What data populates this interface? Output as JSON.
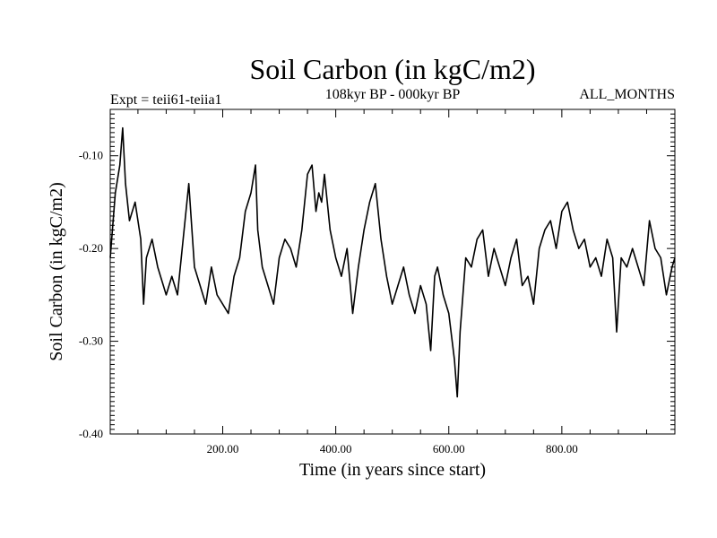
{
  "chart_data": {
    "type": "line",
    "title": "Soil Carbon (in kgC/m2)",
    "subtitle_left": "Expt = teii61-teiia1",
    "subtitle_center": "108kyr BP - 000kyr BP",
    "subtitle_right": "ALL_MONTHS",
    "xlabel": "Time (in years since start)",
    "ylabel": "Soil Carbon (in kgC/m2)",
    "xlim": [
      1,
      1000
    ],
    "ylim": [
      -0.4,
      -0.05
    ],
    "xticks": [
      {
        "value": 200,
        "label": "200.00"
      },
      {
        "value": 400,
        "label": "400.00"
      },
      {
        "value": 600,
        "label": "600.00"
      },
      {
        "value": 800,
        "label": "800.00"
      }
    ],
    "yticks": [
      {
        "value": -0.1,
        "label": "-0.10"
      },
      {
        "value": -0.2,
        "label": "-0.20"
      },
      {
        "value": -0.3,
        "label": "-0.30"
      },
      {
        "value": -0.4,
        "label": "-0.40"
      }
    ],
    "grid": false,
    "line_color": "#000000",
    "series": [
      {
        "x": [
          1,
          10,
          18,
          23,
          28,
          35,
          45,
          55,
          60,
          65,
          75,
          85,
          95,
          100,
          110,
          120,
          130,
          140,
          150,
          160,
          170,
          180,
          190,
          200,
          210,
          220,
          230,
          240,
          250,
          258,
          262,
          270,
          280,
          290,
          300,
          310,
          320,
          330,
          340,
          350,
          358,
          365,
          370,
          375,
          380,
          390,
          400,
          410,
          420,
          430,
          440,
          450,
          460,
          470,
          480,
          490,
          500,
          510,
          520,
          530,
          540,
          550,
          560,
          568,
          575,
          580,
          590,
          600,
          610,
          615,
          620,
          630,
          640,
          650,
          660,
          670,
          680,
          690,
          700,
          710,
          720,
          730,
          740,
          750,
          760,
          770,
          780,
          790,
          800,
          810,
          820,
          830,
          840,
          850,
          860,
          870,
          880,
          890,
          897,
          905,
          915,
          925,
          935,
          945,
          955,
          965,
          975,
          985,
          995,
          1000
        ],
        "y": [
          -0.21,
          -0.14,
          -0.11,
          -0.07,
          -0.13,
          -0.17,
          -0.15,
          -0.19,
          -0.26,
          -0.21,
          -0.19,
          -0.22,
          -0.24,
          -0.25,
          -0.23,
          -0.25,
          -0.19,
          -0.13,
          -0.22,
          -0.24,
          -0.26,
          -0.22,
          -0.25,
          -0.26,
          -0.27,
          -0.23,
          -0.21,
          -0.16,
          -0.14,
          -0.11,
          -0.18,
          -0.22,
          -0.24,
          -0.26,
          -0.21,
          -0.19,
          -0.2,
          -0.22,
          -0.18,
          -0.12,
          -0.11,
          -0.16,
          -0.14,
          -0.15,
          -0.12,
          -0.18,
          -0.21,
          -0.23,
          -0.2,
          -0.27,
          -0.22,
          -0.18,
          -0.15,
          -0.13,
          -0.19,
          -0.23,
          -0.26,
          -0.24,
          -0.22,
          -0.25,
          -0.27,
          -0.24,
          -0.26,
          -0.31,
          -0.23,
          -0.22,
          -0.25,
          -0.27,
          -0.32,
          -0.36,
          -0.29,
          -0.21,
          -0.22,
          -0.19,
          -0.18,
          -0.23,
          -0.2,
          -0.22,
          -0.24,
          -0.21,
          -0.19,
          -0.24,
          -0.23,
          -0.26,
          -0.2,
          -0.18,
          -0.17,
          -0.2,
          -0.16,
          -0.15,
          -0.18,
          -0.2,
          -0.19,
          -0.22,
          -0.21,
          -0.23,
          -0.19,
          -0.21,
          -0.29,
          -0.21,
          -0.22,
          -0.2,
          -0.22,
          -0.24,
          -0.17,
          -0.2,
          -0.21,
          -0.25,
          -0.22,
          -0.21
        ]
      }
    ]
  }
}
